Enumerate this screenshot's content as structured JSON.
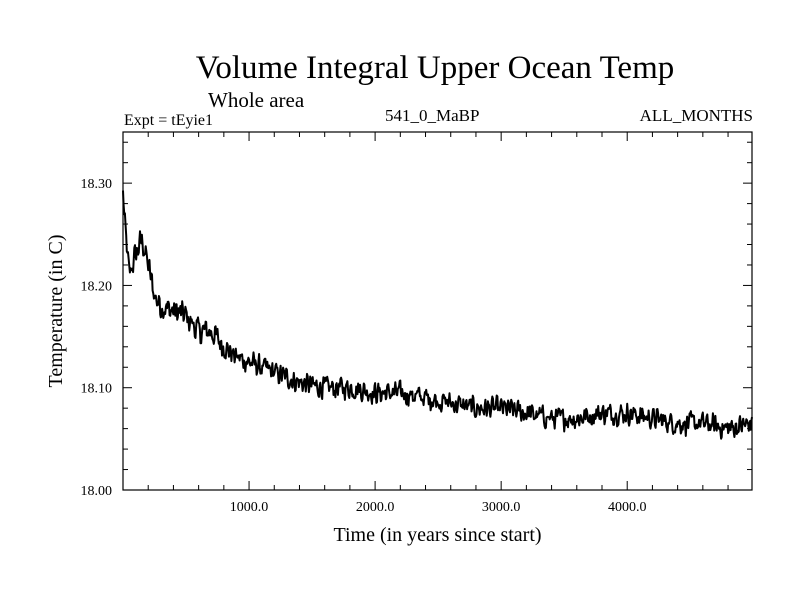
{
  "chart_data": {
    "type": "line",
    "title": "Volume Integral Upper Ocean Temp",
    "subtitle": "Whole area",
    "annotations": {
      "left": "Expt = tEyie1",
      "center": "541_0_MaBP",
      "right": "ALL_MONTHS"
    },
    "xlabel": "Time (in years since start)",
    "ylabel": "Temperature (in C)",
    "xlim": [
      0,
      4990
    ],
    "ylim": [
      18.0,
      18.35
    ],
    "x_ticks": [
      {
        "value": 1000,
        "label": "1000.0"
      },
      {
        "value": 2000,
        "label": "2000.0"
      },
      {
        "value": 3000,
        "label": "3000.0"
      },
      {
        "value": 4000,
        "label": "4000.0"
      }
    ],
    "y_ticks": [
      {
        "value": 18.0,
        "label": "18.00"
      },
      {
        "value": 18.1,
        "label": "18.10"
      },
      {
        "value": 18.2,
        "label": "18.20"
      },
      {
        "value": 18.3,
        "label": "18.30"
      }
    ],
    "grid": false,
    "series": [
      {
        "name": "Volume integral upper ocean temperature",
        "color": "#000000",
        "x": [
          0,
          20,
          50,
          100,
          150,
          200,
          250,
          300,
          400,
          500,
          600,
          700,
          800,
          900,
          1000,
          1200,
          1400,
          1600,
          1800,
          2000,
          2200,
          2400,
          2600,
          2800,
          3000,
          3200,
          3400,
          3600,
          3800,
          4000,
          4200,
          4400,
          4600,
          4800,
          4990
        ],
        "y": [
          18.29,
          18.25,
          18.21,
          18.23,
          18.245,
          18.22,
          18.19,
          18.18,
          18.175,
          18.17,
          18.155,
          18.155,
          18.14,
          18.13,
          18.125,
          18.115,
          18.105,
          18.1,
          18.1,
          18.095,
          18.095,
          18.09,
          18.085,
          18.08,
          18.08,
          18.075,
          18.07,
          18.07,
          18.075,
          18.075,
          18.07,
          18.065,
          18.065,
          18.06,
          18.065
        ]
      }
    ]
  }
}
